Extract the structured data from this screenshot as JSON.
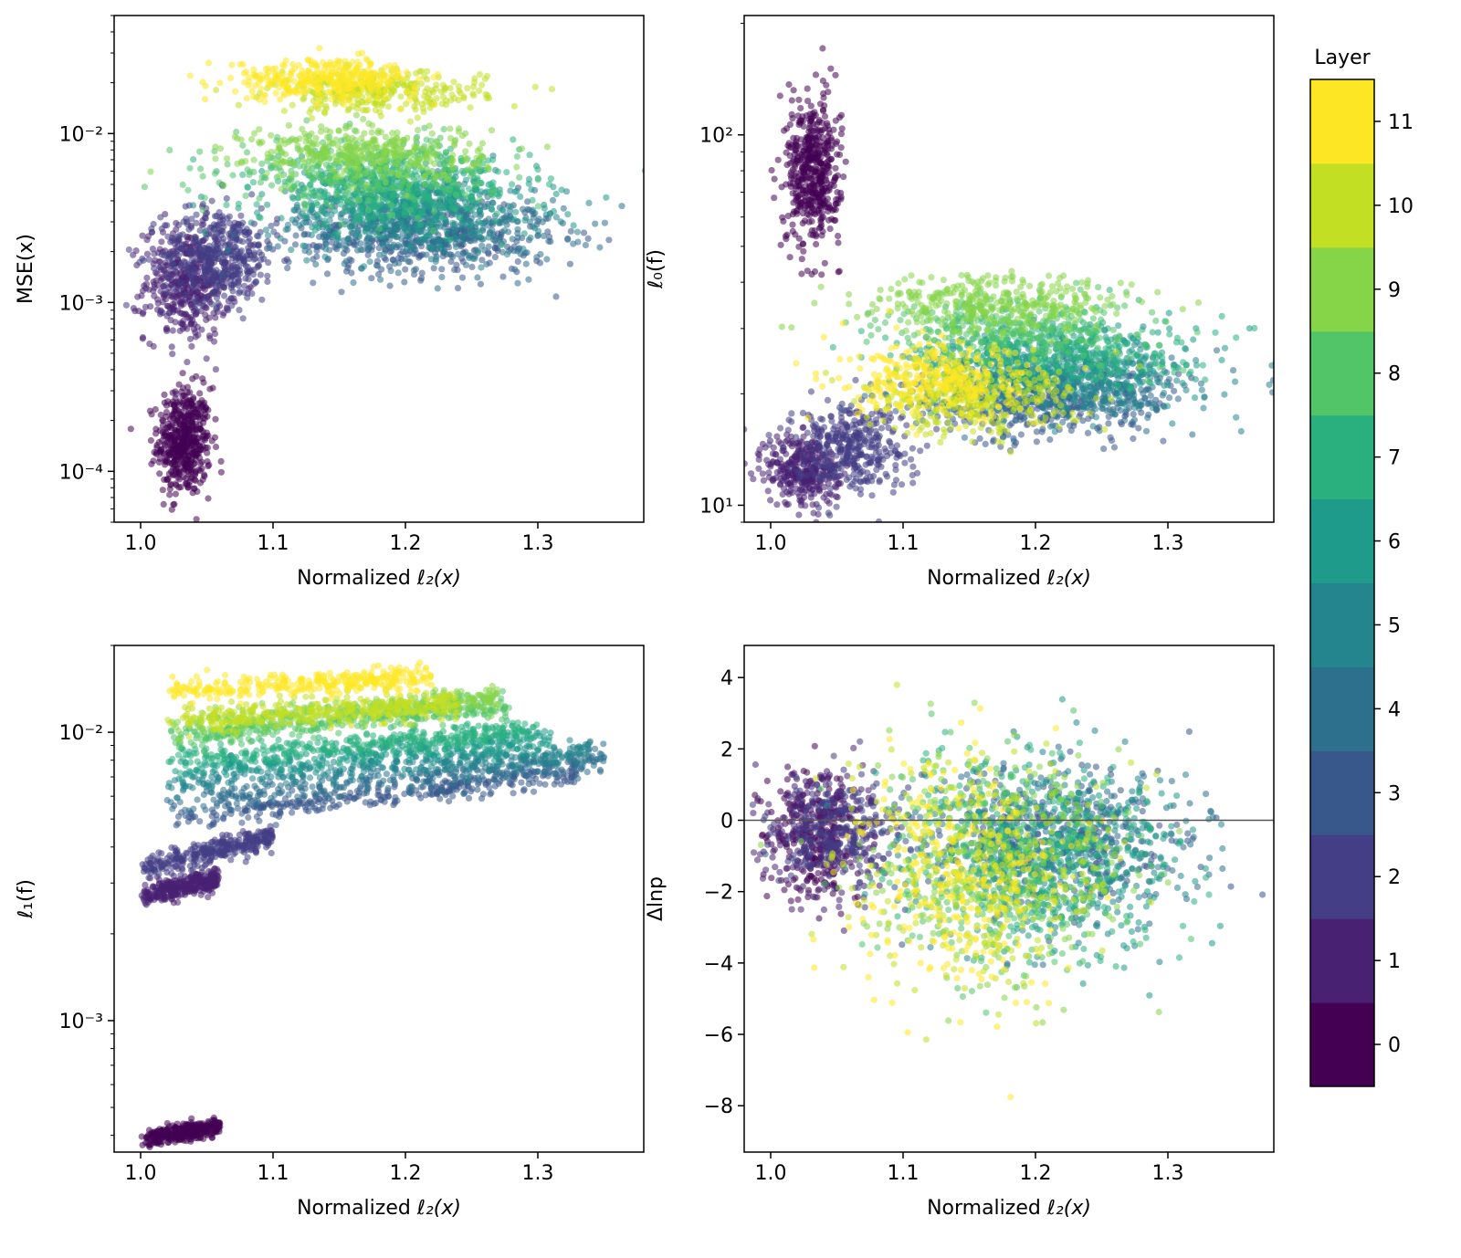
{
  "colorbar": {
    "title": "Layer",
    "ticks": [
      "0",
      "1",
      "2",
      "3",
      "4",
      "5",
      "6",
      "7",
      "8",
      "9",
      "10",
      "11"
    ],
    "colors": [
      "#440154",
      "#482173",
      "#433e85",
      "#38588c",
      "#2d708e",
      "#25858e",
      "#1e9b8a",
      "#2ab07f",
      "#52c569",
      "#86d549",
      "#c2df23",
      "#fde725"
    ]
  },
  "chart_data": [
    {
      "id": "mse",
      "type": "scatter",
      "title": "",
      "xlabel_prefix": "Normalized ",
      "xlabel_math": "ℓ₂(x)",
      "ylabel": "MSE(x)",
      "yscale": "log",
      "xlim": [
        0.98,
        1.38
      ],
      "ylim": [
        5e-05,
        0.05
      ],
      "x_ticks": [
        "1.0",
        "1.1",
        "1.2",
        "1.3"
      ],
      "x_tick_values": [
        1.0,
        1.1,
        1.2,
        1.3
      ],
      "y_ticks": [
        "10⁻⁴",
        "10⁻³",
        "10⁻²"
      ],
      "y_tick_values": [
        0.0001,
        0.001,
        0.01
      ],
      "clusters": [
        {
          "layer": 0,
          "x_mean": 1.033,
          "x_sd": 0.01,
          "y_center": 0.00015,
          "y_spread_log10": 0.16,
          "n": 500
        },
        {
          "layer": 1,
          "x_mean": 1.035,
          "x_sd": 0.016,
          "y_center": 0.0013,
          "y_spread_log10": 0.17,
          "n": 420
        },
        {
          "layer": 2,
          "x_mean": 1.06,
          "x_sd": 0.022,
          "y_center": 0.0019,
          "y_spread_log10": 0.14,
          "n": 420
        },
        {
          "layer": 3,
          "x_mean": 1.21,
          "x_sd": 0.05,
          "y_center": 0.0024,
          "y_spread_log10": 0.12,
          "n": 340
        },
        {
          "layer": 4,
          "x_mean": 1.22,
          "x_sd": 0.05,
          "y_center": 0.0027,
          "y_spread_log10": 0.12,
          "n": 340
        },
        {
          "layer": 5,
          "x_mean": 1.2,
          "x_sd": 0.05,
          "y_center": 0.0033,
          "y_spread_log10": 0.12,
          "n": 340
        },
        {
          "layer": 6,
          "x_mean": 1.2,
          "x_sd": 0.05,
          "y_center": 0.004,
          "y_spread_log10": 0.11,
          "n": 340
        },
        {
          "layer": 7,
          "x_mean": 1.19,
          "x_sd": 0.05,
          "y_center": 0.0048,
          "y_spread_log10": 0.1,
          "n": 340
        },
        {
          "layer": 8,
          "x_mean": 1.17,
          "x_sd": 0.05,
          "y_center": 0.006,
          "y_spread_log10": 0.1,
          "n": 340
        },
        {
          "layer": 9,
          "x_mean": 1.17,
          "x_sd": 0.045,
          "y_center": 0.0078,
          "y_spread_log10": 0.08,
          "n": 340
        },
        {
          "layer": 10,
          "x_mean": 1.18,
          "x_sd": 0.04,
          "y_center": 0.0175,
          "y_spread_log10": 0.06,
          "n": 300
        },
        {
          "layer": 11,
          "x_mean": 1.14,
          "x_sd": 0.035,
          "y_center": 0.021,
          "y_spread_log10": 0.06,
          "n": 340
        }
      ]
    },
    {
      "id": "l0",
      "type": "scatter",
      "title": "",
      "xlabel_prefix": "Normalized ",
      "xlabel_math": "ℓ₂(x)",
      "ylabel": "ℓ₀(f)",
      "yscale": "log",
      "xlim": [
        0.98,
        1.38
      ],
      "ylim": [
        9.0,
        210.0
      ],
      "x_ticks": [
        "1.0",
        "1.1",
        "1.2",
        "1.3"
      ],
      "x_tick_values": [
        1.0,
        1.1,
        1.2,
        1.3
      ],
      "y_ticks": [
        "10¹",
        "10²"
      ],
      "y_tick_values": [
        10,
        100
      ],
      "clusters": [
        {
          "layer": 0,
          "x_mean": 1.032,
          "x_sd": 0.01,
          "y_center": 80,
          "y_spread_log10": 0.1,
          "n": 500
        },
        {
          "layer": 1,
          "x_mean": 1.025,
          "x_sd": 0.014,
          "y_center": 12.5,
          "y_spread_log10": 0.05,
          "n": 360
        },
        {
          "layer": 2,
          "x_mean": 1.06,
          "x_sd": 0.022,
          "y_center": 14.5,
          "y_spread_log10": 0.06,
          "n": 360
        },
        {
          "layer": 3,
          "x_mean": 1.2,
          "x_sd": 0.05,
          "y_center": 18.5,
          "y_spread_log10": 0.05,
          "n": 320
        },
        {
          "layer": 4,
          "x_mean": 1.22,
          "x_sd": 0.05,
          "y_center": 20.5,
          "y_spread_log10": 0.05,
          "n": 320
        },
        {
          "layer": 5,
          "x_mean": 1.22,
          "x_sd": 0.05,
          "y_center": 22,
          "y_spread_log10": 0.05,
          "n": 320
        },
        {
          "layer": 6,
          "x_mean": 1.22,
          "x_sd": 0.05,
          "y_center": 24,
          "y_spread_log10": 0.05,
          "n": 320
        },
        {
          "layer": 7,
          "x_mean": 1.21,
          "x_sd": 0.05,
          "y_center": 26.5,
          "y_spread_log10": 0.05,
          "n": 320
        },
        {
          "layer": 8,
          "x_mean": 1.19,
          "x_sd": 0.05,
          "y_center": 30,
          "y_spread_log10": 0.045,
          "n": 300
        },
        {
          "layer": 9,
          "x_mean": 1.17,
          "x_sd": 0.05,
          "y_center": 35,
          "y_spread_log10": 0.04,
          "n": 340
        },
        {
          "layer": 10,
          "x_mean": 1.15,
          "x_sd": 0.04,
          "y_center": 19.5,
          "y_spread_log10": 0.05,
          "n": 340
        },
        {
          "layer": 11,
          "x_mean": 1.13,
          "x_sd": 0.035,
          "y_center": 21.5,
          "y_spread_log10": 0.05,
          "n": 340
        }
      ]
    },
    {
      "id": "l1",
      "type": "scatter",
      "title": "",
      "xlabel_prefix": "Normalized ",
      "xlabel_math": "ℓ₂(x)",
      "ylabel": "ℓ₁(f)",
      "yscale": "log",
      "xlim": [
        0.98,
        1.38
      ],
      "ylim": [
        0.00035,
        0.02
      ],
      "x_ticks": [
        "1.0",
        "1.1",
        "1.2",
        "1.3"
      ],
      "x_tick_values": [
        1.0,
        1.1,
        1.2,
        1.3
      ],
      "y_ticks": [
        "10⁻³",
        "10⁻²"
      ],
      "y_tick_values": [
        0.001,
        0.01
      ],
      "bands": [
        {
          "layer": 0,
          "x_min": 1.0,
          "x_max": 1.06,
          "y_start": 0.00039,
          "y_end": 0.00043,
          "width_log10": 0.015,
          "n": 320
        },
        {
          "layer": 1,
          "x_min": 1.0,
          "x_max": 1.06,
          "y_start": 0.0027,
          "y_end": 0.0031,
          "width_log10": 0.02,
          "n": 320
        },
        {
          "layer": 2,
          "x_min": 1.0,
          "x_max": 1.1,
          "y_start": 0.0034,
          "y_end": 0.0043,
          "width_log10": 0.02,
          "n": 320
        },
        {
          "layer": 3,
          "x_min": 1.02,
          "x_max": 1.33,
          "y_start": 0.005,
          "y_end": 0.0072,
          "width_log10": 0.02,
          "n": 320
        },
        {
          "layer": 4,
          "x_min": 1.02,
          "x_max": 1.35,
          "y_start": 0.0057,
          "y_end": 0.0081,
          "width_log10": 0.02,
          "n": 320
        },
        {
          "layer": 5,
          "x_min": 1.02,
          "x_max": 1.34,
          "y_start": 0.0066,
          "y_end": 0.0086,
          "width_log10": 0.02,
          "n": 320
        },
        {
          "layer": 6,
          "x_min": 1.02,
          "x_max": 1.31,
          "y_start": 0.0074,
          "y_end": 0.0094,
          "width_log10": 0.02,
          "n": 320
        },
        {
          "layer": 7,
          "x_min": 1.02,
          "x_max": 1.3,
          "y_start": 0.0081,
          "y_end": 0.0101,
          "width_log10": 0.02,
          "n": 320
        },
        {
          "layer": 8,
          "x_min": 1.02,
          "x_max": 1.28,
          "y_start": 0.0095,
          "y_end": 0.0125,
          "width_log10": 0.02,
          "n": 320
        },
        {
          "layer": 9,
          "x_min": 1.02,
          "x_max": 1.27,
          "y_start": 0.0105,
          "y_end": 0.0132,
          "width_log10": 0.02,
          "n": 320
        },
        {
          "layer": 10,
          "x_min": 1.02,
          "x_max": 1.24,
          "y_start": 0.011,
          "y_end": 0.0125,
          "width_log10": 0.025,
          "n": 320
        },
        {
          "layer": 11,
          "x_min": 1.02,
          "x_max": 1.22,
          "y_start": 0.0138,
          "y_end": 0.0155,
          "width_log10": 0.02,
          "n": 320
        }
      ]
    },
    {
      "id": "dlnp",
      "type": "scatter",
      "title": "",
      "xlabel_prefix": "Normalized ",
      "xlabel_math": "ℓ₂(x)",
      "ylabel": "Δlnp",
      "yscale": "linear",
      "xlim": [
        0.98,
        1.38
      ],
      "ylim": [
        -9.3,
        4.9
      ],
      "x_ticks": [
        "1.0",
        "1.1",
        "1.2",
        "1.3"
      ],
      "x_tick_values": [
        1.0,
        1.1,
        1.2,
        1.3
      ],
      "y_ticks": [
        "−8",
        "−6",
        "−4",
        "−2",
        "0",
        "2",
        "4"
      ],
      "y_tick_values": [
        -8,
        -6,
        -4,
        -2,
        0,
        2,
        4
      ],
      "hline": 0,
      "clusters": [
        {
          "layer": 0,
          "x_mean": 1.035,
          "x_sd": 0.018,
          "y_center": -0.4,
          "y_sd": 0.9,
          "n": 260
        },
        {
          "layer": 1,
          "x_mean": 1.04,
          "x_sd": 0.02,
          "y_center": -0.3,
          "y_sd": 0.9,
          "n": 260
        },
        {
          "layer": 2,
          "x_mean": 1.05,
          "x_sd": 0.025,
          "y_center": -0.4,
          "y_sd": 0.8,
          "n": 240
        },
        {
          "layer": 3,
          "x_mean": 1.2,
          "x_sd": 0.055,
          "y_center": -0.6,
          "y_sd": 1.0,
          "n": 280
        },
        {
          "layer": 4,
          "x_mean": 1.22,
          "x_sd": 0.05,
          "y_center": -0.7,
          "y_sd": 1.1,
          "n": 280
        },
        {
          "layer": 5,
          "x_mean": 1.22,
          "x_sd": 0.05,
          "y_center": -0.8,
          "y_sd": 1.2,
          "n": 280
        },
        {
          "layer": 6,
          "x_mean": 1.22,
          "x_sd": 0.05,
          "y_center": -1.0,
          "y_sd": 1.3,
          "n": 280
        },
        {
          "layer": 7,
          "x_mean": 1.2,
          "x_sd": 0.05,
          "y_center": -1.1,
          "y_sd": 1.4,
          "n": 280
        },
        {
          "layer": 8,
          "x_mean": 1.18,
          "x_sd": 0.05,
          "y_center": -1.2,
          "y_sd": 1.5,
          "n": 280
        },
        {
          "layer": 9,
          "x_mean": 1.17,
          "x_sd": 0.05,
          "y_center": -1.3,
          "y_sd": 1.5,
          "n": 280
        },
        {
          "layer": 10,
          "x_mean": 1.16,
          "x_sd": 0.05,
          "y_center": -1.4,
          "y_sd": 1.6,
          "n": 280
        },
        {
          "layer": 11,
          "x_mean": 1.14,
          "x_sd": 0.04,
          "y_center": -1.6,
          "y_sd": 1.7,
          "n": 300
        }
      ]
    }
  ]
}
